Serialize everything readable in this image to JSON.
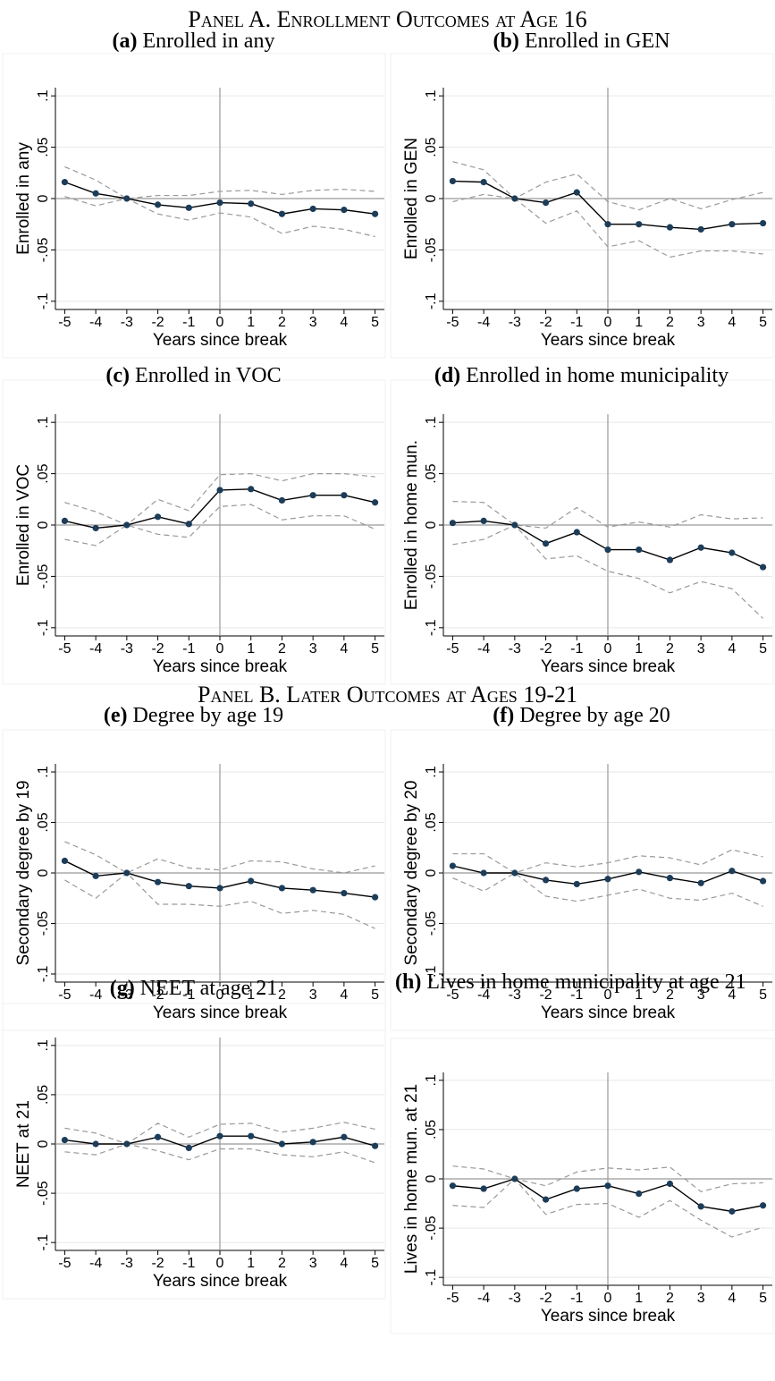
{
  "panel_titles": [
    "Panel A. Enrollment Outcomes at Age 16",
    "Panel B. Later Outcomes at Ages 19-21"
  ],
  "chart_data": [
    {
      "type": "line",
      "label": "(a)",
      "title": "Enrolled in any",
      "xlabel": "Years since break",
      "ylabel": "Enrolled in any",
      "x": [
        -5,
        -4,
        -3,
        -2,
        -1,
        0,
        1,
        2,
        3,
        4,
        5
      ],
      "xlim": [
        -5.3,
        5.3
      ],
      "xticks": [
        -5,
        -4,
        -3,
        -2,
        -1,
        0,
        1,
        2,
        3,
        4,
        5
      ],
      "ylim": [
        -0.108,
        0.108
      ],
      "yticks": [
        {
          "value": -0.1,
          "label": "-.1"
        },
        {
          "value": -0.05,
          "label": "-.05"
        },
        0,
        {
          "value": 0.05,
          "label": ".05"
        },
        {
          "value": 0.1,
          "label": ".1"
        }
      ],
      "grid": true,
      "reference_lines": {
        "x": 0,
        "y": 0
      },
      "series": [
        {
          "color": "#000000",
          "marker_color": "#1c3d5a",
          "style": "solid",
          "values": [
            0.016,
            0.005,
            0,
            -0.006,
            -0.009,
            -0.004,
            -0.005,
            -0.015,
            -0.01,
            -0.011,
            -0.015
          ]
        },
        {
          "color": "#999999",
          "style": "dashed",
          "values": [
            0.031,
            0.018,
            0,
            0.003,
            0.003,
            0.007,
            0.008,
            0.004,
            0.008,
            0.009,
            0.007
          ]
        },
        {
          "color": "#999999",
          "style": "dashed",
          "values": [
            0.002,
            -0.007,
            0,
            -0.015,
            -0.021,
            -0.014,
            -0.018,
            -0.034,
            -0.027,
            -0.03,
            -0.037
          ]
        }
      ]
    },
    {
      "type": "line",
      "label": "(b)",
      "title": "Enrolled in GEN",
      "xlabel": "Years since break",
      "ylabel": "Enrolled in GEN",
      "x": [
        -5,
        -4,
        -3,
        -2,
        -1,
        0,
        1,
        2,
        3,
        4,
        5
      ],
      "xlim": [
        -5.3,
        5.3
      ],
      "xticks": [
        -5,
        -4,
        -3,
        -2,
        -1,
        0,
        1,
        2,
        3,
        4,
        5
      ],
      "ylim": [
        -0.108,
        0.108
      ],
      "yticks": [
        {
          "value": -0.1,
          "label": "-.1"
        },
        {
          "value": -0.05,
          "label": "-.05"
        },
        0,
        {
          "value": 0.05,
          "label": ".05"
        },
        {
          "value": 0.1,
          "label": ".1"
        }
      ],
      "grid": true,
      "reference_lines": {
        "x": 0,
        "y": 0
      },
      "series": [
        {
          "color": "#000000",
          "marker_color": "#1c3d5a",
          "style": "solid",
          "values": [
            0.017,
            0.016,
            0,
            -0.004,
            0.006,
            -0.025,
            -0.025,
            -0.028,
            -0.03,
            -0.025,
            -0.024
          ]
        },
        {
          "color": "#999999",
          "style": "dashed",
          "values": [
            0.036,
            0.028,
            0,
            0.016,
            0.024,
            -0.003,
            -0.011,
            0,
            -0.01,
            -0.001,
            0.006
          ]
        },
        {
          "color": "#999999",
          "style": "dashed",
          "values": [
            -0.003,
            0.004,
            0,
            -0.024,
            -0.012,
            -0.047,
            -0.041,
            -0.057,
            -0.051,
            -0.051,
            -0.054
          ]
        }
      ]
    },
    {
      "type": "line",
      "label": "(c)",
      "title": "Enrolled in VOC",
      "xlabel": "Years since break",
      "ylabel": "Enrolled in VOC",
      "x": [
        -5,
        -4,
        -3,
        -2,
        -1,
        0,
        1,
        2,
        3,
        4,
        5
      ],
      "xlim": [
        -5.3,
        5.3
      ],
      "xticks": [
        -5,
        -4,
        -3,
        -2,
        -1,
        0,
        1,
        2,
        3,
        4,
        5
      ],
      "ylim": [
        -0.108,
        0.108
      ],
      "yticks": [
        {
          "value": -0.1,
          "label": "-.1"
        },
        {
          "value": -0.05,
          "label": "-.05"
        },
        0,
        {
          "value": 0.05,
          "label": ".05"
        },
        {
          "value": 0.1,
          "label": ".1"
        }
      ],
      "grid": true,
      "reference_lines": {
        "x": 0,
        "y": 0
      },
      "series": [
        {
          "color": "#000000",
          "marker_color": "#1c3d5a",
          "style": "solid",
          "values": [
            0.004,
            -0.003,
            0,
            0.008,
            0.001,
            0.034,
            0.035,
            0.024,
            0.029,
            0.029,
            0.022
          ]
        },
        {
          "color": "#999999",
          "style": "dashed",
          "values": [
            0.022,
            0.013,
            0,
            0.025,
            0.014,
            0.049,
            0.05,
            0.043,
            0.05,
            0.05,
            0.047
          ]
        },
        {
          "color": "#999999",
          "style": "dashed",
          "values": [
            -0.014,
            -0.02,
            0,
            -0.009,
            -0.012,
            0.018,
            0.02,
            0.005,
            0.009,
            0.009,
            -0.004
          ]
        }
      ]
    },
    {
      "type": "line",
      "label": "(d)",
      "title": "Enrolled in home municipality",
      "xlabel": "Years since break",
      "ylabel": "Enrolled in home mun.",
      "x": [
        -5,
        -4,
        -3,
        -2,
        -1,
        0,
        1,
        2,
        3,
        4,
        5
      ],
      "xlim": [
        -5.3,
        5.3
      ],
      "xticks": [
        -5,
        -4,
        -3,
        -2,
        -1,
        0,
        1,
        2,
        3,
        4,
        5
      ],
      "ylim": [
        -0.108,
        0.108
      ],
      "yticks": [
        {
          "value": -0.1,
          "label": "-.1"
        },
        {
          "value": -0.05,
          "label": "-.05"
        },
        0,
        {
          "value": 0.05,
          "label": ".05"
        },
        {
          "value": 0.1,
          "label": ".1"
        }
      ],
      "grid": true,
      "reference_lines": {
        "x": 0,
        "y": 0
      },
      "series": [
        {
          "color": "#000000",
          "marker_color": "#1c3d5a",
          "style": "solid",
          "values": [
            0.002,
            0.004,
            0,
            -0.018,
            -0.007,
            -0.024,
            -0.024,
            -0.034,
            -0.022,
            -0.027,
            -0.041
          ]
        },
        {
          "color": "#999999",
          "style": "dashed",
          "values": [
            0.023,
            0.022,
            0,
            -0.003,
            0.017,
            -0.002,
            0.003,
            -0.002,
            0.01,
            0.006,
            0.007
          ]
        },
        {
          "color": "#999999",
          "style": "dashed",
          "values": [
            -0.019,
            -0.014,
            0,
            -0.033,
            -0.03,
            -0.045,
            -0.052,
            -0.066,
            -0.055,
            -0.062,
            -0.091
          ]
        }
      ]
    },
    {
      "type": "line",
      "label": "(e)",
      "title": "Degree by age 19",
      "xlabel": "Years since break",
      "ylabel": "Secondary degree by 19",
      "x": [
        -5,
        -4,
        -3,
        -2,
        -1,
        0,
        1,
        2,
        3,
        4,
        5
      ],
      "xlim": [
        -5.3,
        5.3
      ],
      "xticks": [
        -5,
        -4,
        -3,
        -2,
        -1,
        0,
        1,
        2,
        3,
        4,
        5
      ],
      "ylim": [
        -0.108,
        0.108
      ],
      "yticks": [
        {
          "value": -0.1,
          "label": "-.1"
        },
        {
          "value": -0.05,
          "label": "-.05"
        },
        0,
        {
          "value": 0.05,
          "label": ".05"
        },
        {
          "value": 0.1,
          "label": ".1"
        }
      ],
      "grid": true,
      "reference_lines": {
        "x": 0,
        "y": 0
      },
      "series": [
        {
          "color": "#000000",
          "marker_color": "#1c3d5a",
          "style": "solid",
          "values": [
            0.012,
            -0.003,
            0,
            -0.009,
            -0.013,
            -0.015,
            -0.008,
            -0.015,
            -0.017,
            -0.02,
            -0.024
          ]
        },
        {
          "color": "#999999",
          "style": "dashed",
          "values": [
            0.031,
            0.018,
            0,
            0.014,
            0.005,
            0.003,
            0.012,
            0.011,
            0.004,
            0,
            0.007
          ]
        },
        {
          "color": "#999999",
          "style": "dashed",
          "values": [
            -0.007,
            -0.025,
            0,
            -0.031,
            -0.031,
            -0.033,
            -0.028,
            -0.04,
            -0.037,
            -0.041,
            -0.055
          ]
        }
      ]
    },
    {
      "type": "line",
      "label": "(f)",
      "title": "Degree by age 20",
      "xlabel": "Years since break",
      "ylabel": "Secondary degree by 20",
      "x": [
        -5,
        -4,
        -3,
        -2,
        -1,
        0,
        1,
        2,
        3,
        4,
        5
      ],
      "xlim": [
        -5.3,
        5.3
      ],
      "xticks": [
        -5,
        -4,
        -3,
        -2,
        -1,
        0,
        1,
        2,
        3,
        4,
        5
      ],
      "ylim": [
        -0.108,
        0.108
      ],
      "yticks": [
        {
          "value": -0.1,
          "label": "-.1"
        },
        {
          "value": -0.05,
          "label": "-.05"
        },
        0,
        {
          "value": 0.05,
          "label": ".05"
        },
        {
          "value": 0.1,
          "label": ".1"
        }
      ],
      "grid": true,
      "reference_lines": {
        "x": 0,
        "y": 0
      },
      "series": [
        {
          "color": "#000000",
          "marker_color": "#1c3d5a",
          "style": "solid",
          "values": [
            0.007,
            0,
            0,
            -0.007,
            -0.011,
            -0.006,
            0.001,
            -0.005,
            -0.01,
            0.002,
            -0.008
          ]
        },
        {
          "color": "#999999",
          "style": "dashed",
          "values": [
            0.019,
            0.019,
            0,
            0.01,
            0.006,
            0.01,
            0.017,
            0.015,
            0.008,
            0.023,
            0.016
          ]
        },
        {
          "color": "#999999",
          "style": "dashed",
          "values": [
            -0.005,
            -0.018,
            0,
            -0.023,
            -0.028,
            -0.022,
            -0.016,
            -0.025,
            -0.027,
            -0.02,
            -0.033
          ]
        }
      ]
    },
    {
      "type": "line",
      "label": "(g)",
      "title": "NEET at age 21",
      "xlabel": "Years since break",
      "ylabel": "NEET at 21",
      "x": [
        -5,
        -4,
        -3,
        -2,
        -1,
        0,
        1,
        2,
        3,
        4,
        5
      ],
      "xlim": [
        -5.3,
        5.3
      ],
      "xticks": [
        -5,
        -4,
        -3,
        -2,
        -1,
        0,
        1,
        2,
        3,
        4,
        5
      ],
      "ylim": [
        -0.108,
        0.108
      ],
      "yticks": [
        {
          "value": -0.1,
          "label": "-.1"
        },
        {
          "value": -0.05,
          "label": "-.05"
        },
        0,
        {
          "value": 0.05,
          "label": ".05"
        },
        {
          "value": 0.1,
          "label": ".1"
        }
      ],
      "grid": true,
      "reference_lines": {
        "x": 0,
        "y": 0
      },
      "series": [
        {
          "color": "#000000",
          "marker_color": "#1c3d5a",
          "style": "solid",
          "values": [
            0.004,
            0,
            0,
            0.007,
            -0.004,
            0.008,
            0.008,
            0,
            0.002,
            0.007,
            -0.002
          ]
        },
        {
          "color": "#999999",
          "style": "dashed",
          "values": [
            0.016,
            0.011,
            0,
            0.021,
            0.007,
            0.02,
            0.021,
            0.012,
            0.016,
            0.022,
            0.015
          ]
        },
        {
          "color": "#999999",
          "style": "dashed",
          "values": [
            -0.008,
            -0.011,
            0,
            -0.007,
            -0.016,
            -0.005,
            -0.005,
            -0.011,
            -0.013,
            -0.008,
            -0.019
          ]
        }
      ]
    },
    {
      "type": "line",
      "label": "(h)",
      "title": "Lives in home municipality at age 21",
      "xlabel": "Years since break",
      "ylabel": "Lives in home mun. at 21",
      "x": [
        -5,
        -4,
        -3,
        -2,
        -1,
        0,
        1,
        2,
        3,
        4,
        5
      ],
      "xlim": [
        -5.3,
        5.3
      ],
      "xticks": [
        -5,
        -4,
        -3,
        -2,
        -1,
        0,
        1,
        2,
        3,
        4,
        5
      ],
      "ylim": [
        -0.108,
        0.108
      ],
      "yticks": [
        {
          "value": -0.1,
          "label": "-.1"
        },
        {
          "value": -0.05,
          "label": "-.05"
        },
        0,
        {
          "value": 0.05,
          "label": ".05"
        },
        {
          "value": 0.1,
          "label": ".1"
        }
      ],
      "grid": true,
      "reference_lines": {
        "x": 0,
        "y": 0
      },
      "series": [
        {
          "color": "#000000",
          "marker_color": "#1c3d5a",
          "style": "solid",
          "values": [
            -0.007,
            -0.01,
            0,
            -0.021,
            -0.01,
            -0.007,
            -0.015,
            -0.005,
            -0.028,
            -0.033,
            -0.027
          ]
        },
        {
          "color": "#999999",
          "style": "dashed",
          "values": [
            0.013,
            0.01,
            0,
            -0.007,
            0.007,
            0.011,
            0.009,
            0.012,
            -0.013,
            -0.005,
            -0.004
          ]
        },
        {
          "color": "#999999",
          "style": "dashed",
          "values": [
            -0.027,
            -0.029,
            0,
            -0.036,
            -0.026,
            -0.025,
            -0.039,
            -0.022,
            -0.042,
            -0.059,
            -0.049
          ]
        }
      ]
    }
  ]
}
